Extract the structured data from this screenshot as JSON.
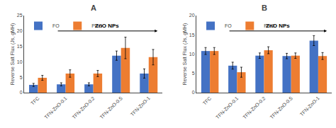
{
  "chart_data": [
    {
      "type": "bar",
      "title": "A",
      "categories": [
        "TFC",
        "TFN-ZnO-0.1",
        "TFN-ZnO-0.2",
        "TFN-ZnO-0.5",
        "TFN-ZnO-1"
      ],
      "series": [
        {
          "name": "FO",
          "color": "#4472C4",
          "values": [
            2.5,
            2.7,
            2.7,
            12.0,
            6.2
          ],
          "errors": [
            0.5,
            0.5,
            0.5,
            1.5,
            1.5
          ]
        },
        {
          "name": "PRO",
          "color": "#ED7D31",
          "values": [
            4.8,
            6.2,
            6.2,
            14.5,
            11.5
          ],
          "errors": [
            0.8,
            1.2,
            1.0,
            3.5,
            2.5
          ]
        }
      ],
      "ylabel": "Reverse Salt Flux (Js, gMH)",
      "ylim": [
        0,
        25
      ],
      "yticks": [
        0,
        5,
        10,
        15,
        20,
        25
      ],
      "grid": false,
      "legend": "upper left",
      "annotations": [
        {
          "text": "ZnO NPs",
          "from": "TFN-ZnO-0.1",
          "to": "TFN-ZnO-1"
        }
      ]
    },
    {
      "type": "bar",
      "title": "B",
      "categories": [
        "TFC",
        "TFN-ZnO-0.1",
        "TFN-ZnO-0.2",
        "TFN-ZnO-0.5",
        "TFN-ZnO-1"
      ],
      "series": [
        {
          "name": "FO",
          "color": "#4472C4",
          "values": [
            10.8,
            7.0,
            9.6,
            9.5,
            13.5
          ],
          "errors": [
            0.9,
            0.9,
            0.7,
            0.7,
            1.3
          ]
        },
        {
          "name": "PRO",
          "color": "#ED7D31",
          "values": [
            10.8,
            5.3,
            11.0,
            9.6,
            9.5
          ],
          "errors": [
            0.9,
            1.3,
            0.9,
            0.7,
            0.9
          ]
        }
      ],
      "ylabel": "Reverse Salt Flux (Js, gMH)",
      "ylim": [
        0,
        20
      ],
      "yticks": [
        0,
        5,
        10,
        15,
        20
      ],
      "grid": false,
      "legend": "upper left",
      "annotations": [
        {
          "text": "ZnO NPs",
          "from": "TFN-ZnO-0.1",
          "to": "TFN-ZnO-1"
        }
      ]
    }
  ]
}
